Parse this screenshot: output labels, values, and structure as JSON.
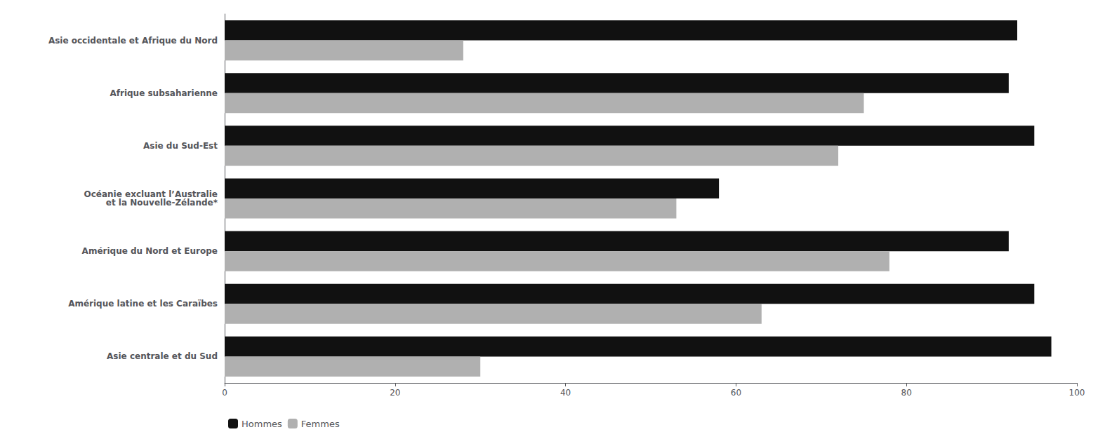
{
  "chart_data": {
    "type": "bar",
    "orientation": "horizontal",
    "categories": [
      "Asie occidentale et Afrique du Nord",
      "Afrique subsaharienne",
      "Asie du Sud-Est",
      "Océanie excluant l’Australie\net la Nouvelle-Zélande*",
      "Amérique du Nord et Europe",
      "Amérique latine et les Caraïbes",
      "Asie centrale et du Sud"
    ],
    "series": [
      {
        "name": "Hommes",
        "color": "#111111",
        "values": [
          93,
          92,
          95,
          58,
          92,
          95,
          97
        ]
      },
      {
        "name": "Femmes",
        "color": "#b0b0b0",
        "values": [
          28,
          75,
          72,
          53,
          78,
          63,
          30
        ]
      }
    ],
    "xlim": [
      0,
      100
    ],
    "xticks": [
      0,
      20,
      40,
      60,
      80,
      100
    ],
    "grid": false,
    "legend": "bottom"
  }
}
